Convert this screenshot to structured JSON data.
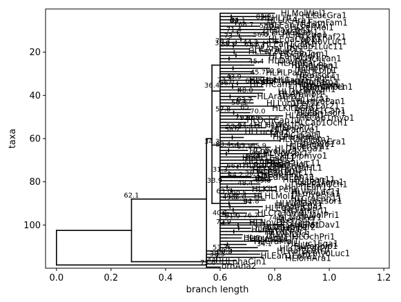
{
  "chart_data": {
    "type": "tree",
    "xlabel": "branch length",
    "ylabel": "taxa",
    "xlim": [
      -0.04,
      1.22
    ],
    "ylim": [
      120,
      0
    ],
    "xticks": [
      "0.0",
      "0.2",
      "0.4",
      "0.6",
      "0.8",
      "1.0",
      "1.2"
    ],
    "xtick_values": [
      0.0,
      0.2,
      0.4,
      0.6,
      0.8,
      1.0,
      1.2
    ],
    "yticks": [
      "20",
      "40",
      "60",
      "80",
      "100"
    ],
    "ytick_values": [
      20,
      40,
      60,
      80,
      100
    ],
    "legible_labels": {
      "leaves": [
        {
          "name": "ornAna2",
          "x": 0.6,
          "y": 119
        },
        {
          "name": "HLphaCin1",
          "x": 0.6,
          "y": 117
        },
        {
          "name": "HLrhiFer2",
          "x": 0.8,
          "y": 101
        },
        {
          "name": "HLrouAeg1",
          "x": 0.68,
          "y": 106
        },
        {
          "name": "HLvanEla1",
          "x": 0.8,
          "y": 100
        },
        {
          "name": "macEug1",
          "x": 0.78,
          "y": 72
        },
        {
          "name": "HLpriCam1",
          "x": 0.75,
          "y": 33
        },
        {
          "name": "HLpanPar1",
          "x": 0.87,
          "y": 35
        },
        {
          "name": "HLmanPen1",
          "x": 0.9,
          "y": 36
        },
        {
          "name": "HLbalOch1",
          "x": 0.82,
          "y": 34
        }
      ],
      "support_values": [
        {
          "text": "62.1",
          "x": 0.275,
          "y": 88
        },
        {
          "text": "73.6",
          "x": 0.555,
          "y": 119
        },
        {
          "text": "34.3",
          "x": 0.57,
          "y": 63
        },
        {
          "text": "36.4",
          "x": 0.57,
          "y": 37
        },
        {
          "text": "33.9",
          "x": 0.58,
          "y": 81
        },
        {
          "text": "44.1",
          "x": 0.58,
          "y": 118
        },
        {
          "text": "38.5",
          "x": 0.59,
          "y": 115
        },
        {
          "text": "53.3",
          "x": 0.6,
          "y": 112
        },
        {
          "text": "31.3",
          "x": 0.6,
          "y": 76
        },
        {
          "text": "40.1",
          "x": 0.6,
          "y": 96
        },
        {
          "text": "53.2",
          "x": 0.65,
          "y": 56
        },
        {
          "text": "43.9",
          "x": 0.65,
          "y": 33
        },
        {
          "text": "62.7",
          "x": 0.72,
          "y": 35
        },
        {
          "text": "65",
          "x": 0.69,
          "y": 47
        },
        {
          "text": "92.6",
          "x": 0.7,
          "y": 52
        },
        {
          "text": "85.7",
          "x": 0.72,
          "y": 70
        },
        {
          "text": "73",
          "x": 0.63,
          "y": 14
        },
        {
          "text": "38.5",
          "x": 0.63,
          "y": 18
        },
        {
          "text": "63",
          "x": 0.65,
          "y": 7
        },
        {
          "text": "94",
          "x": 0.7,
          "y": 91
        }
      ]
    }
  }
}
